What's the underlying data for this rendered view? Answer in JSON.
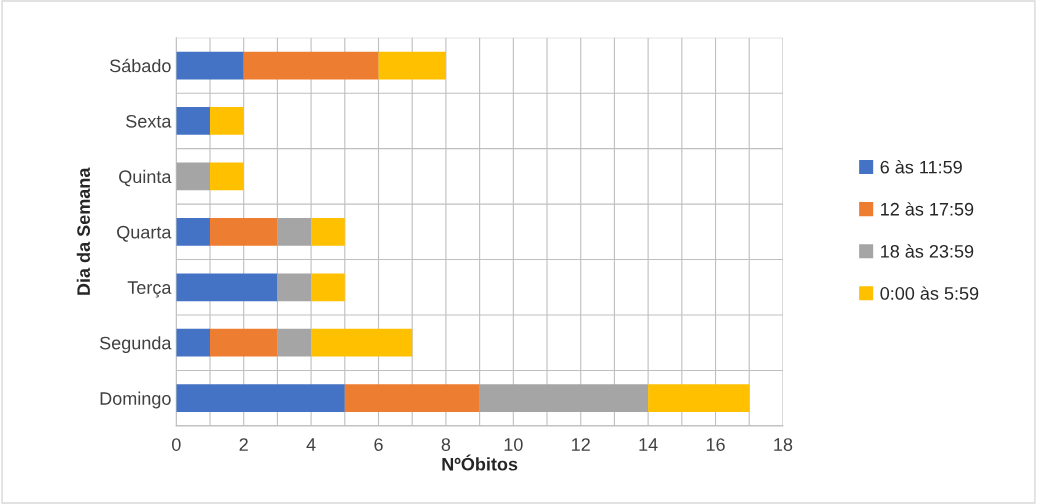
{
  "chart_data": {
    "type": "bar",
    "orientation": "horizontal",
    "stacked": true,
    "xlabel": "NºÓbitos",
    "ylabel": "Dia da Semana",
    "categories": [
      "Sábado",
      "Sexta",
      "Quinta",
      "Quarta",
      "Terça",
      "Segunda",
      "Domingo"
    ],
    "series": [
      {
        "name": "6 às 11:59",
        "color": "#4472c4",
        "values": [
          2,
          1,
          0,
          1,
          3,
          1,
          5
        ]
      },
      {
        "name": "12 às 17:59",
        "color": "#ed7d31",
        "values": [
          4,
          0,
          0,
          2,
          0,
          2,
          4
        ]
      },
      {
        "name": "18 às 23:59",
        "color": "#a5a5a5",
        "values": [
          0,
          0,
          1,
          1,
          1,
          1,
          5
        ]
      },
      {
        "name": "0:00 às 5:59",
        "color": "#ffc000",
        "values": [
          2,
          1,
          1,
          1,
          1,
          3,
          3
        ]
      }
    ],
    "xlim": [
      0,
      18
    ],
    "xticks": [
      0,
      {
        "value": 1,
        "label": null
      },
      2,
      {
        "value": 3,
        "label": null
      },
      4,
      {
        "value": 5,
        "label": null
      },
      6,
      {
        "value": 7,
        "label": null
      },
      8,
      {
        "value": 9,
        "label": null
      },
      10,
      {
        "value": 11,
        "label": null
      },
      12,
      {
        "value": 13,
        "label": null
      },
      14,
      {
        "value": 15,
        "label": null
      },
      16,
      {
        "value": 17,
        "label": null
      },
      18
    ],
    "grid": true,
    "legend": "right"
  }
}
